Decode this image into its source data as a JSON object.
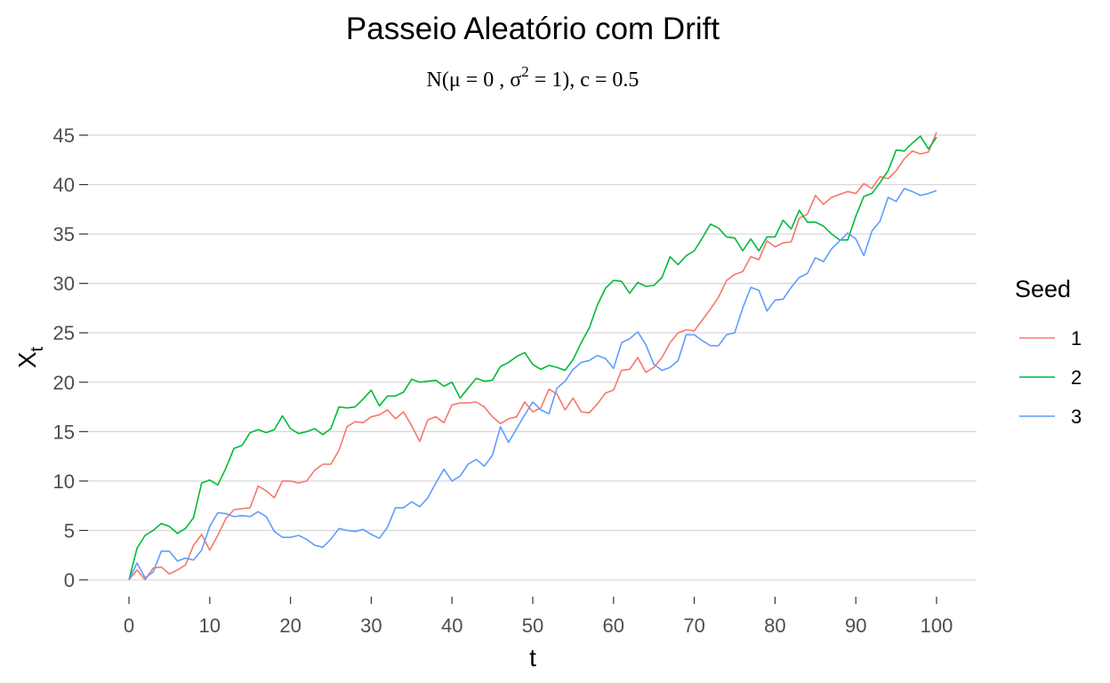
{
  "chart_data": {
    "type": "line",
    "title": "Passeio Aleatório com Drift",
    "subtitle": "N(μ = 0 , σ² = 1),  c = 0.5",
    "subtitle_parts": {
      "a": "N(μ = 0 , σ",
      "sup": "2",
      "b": " = 1),  c = 0.5"
    },
    "xlabel": "t",
    "ylabel": {
      "main": "X",
      "sub": "t"
    },
    "xlim": [
      0,
      100
    ],
    "ylim": [
      0,
      45
    ],
    "xticks": [
      0,
      10,
      20,
      30,
      40,
      50,
      60,
      70,
      80,
      90,
      100
    ],
    "yticks": [
      0,
      5,
      10,
      15,
      20,
      25,
      30,
      35,
      40,
      45
    ],
    "grid": "horizontal",
    "legend": {
      "title": "Seed",
      "placement": "right"
    },
    "x": [
      0,
      1,
      2,
      3,
      4,
      5,
      6,
      7,
      8,
      9,
      10,
      11,
      12,
      13,
      14,
      15,
      16,
      17,
      18,
      19,
      20,
      21,
      22,
      23,
      24,
      25,
      26,
      27,
      28,
      29,
      30,
      31,
      32,
      33,
      34,
      35,
      36,
      37,
      38,
      39,
      40,
      41,
      42,
      43,
      44,
      45,
      46,
      47,
      48,
      49,
      50,
      51,
      52,
      53,
      54,
      55,
      56,
      57,
      58,
      59,
      60,
      61,
      62,
      63,
      64,
      65,
      66,
      67,
      68,
      69,
      70,
      71,
      72,
      73,
      74,
      75,
      76,
      77,
      78,
      79,
      80,
      81,
      82,
      83,
      84,
      85,
      86,
      87,
      88,
      89,
      90,
      91,
      92,
      93,
      94,
      95,
      96,
      97,
      98,
      99,
      100
    ],
    "series": [
      {
        "name": "1",
        "color": "#F8766D",
        "values": [
          0,
          1.0,
          0.0,
          1.2,
          1.3,
          0.6,
          1.0,
          1.5,
          3.5,
          4.6,
          3.0,
          4.5,
          6.2,
          7.1,
          7.2,
          7.3,
          9.5,
          9.0,
          8.3,
          10.0,
          10.0,
          9.8,
          10.0,
          11.1,
          11.7,
          11.7,
          13.1,
          15.5,
          16.0,
          15.9,
          16.5,
          16.7,
          17.2,
          16.3,
          17.0,
          15.6,
          14.0,
          16.2,
          16.5,
          15.9,
          17.7,
          17.9,
          17.9,
          18.0,
          17.5,
          16.5,
          15.8,
          16.3,
          16.5,
          18.0,
          17.0,
          17.4,
          19.3,
          18.8,
          17.2,
          18.4,
          17.0,
          16.9,
          17.8,
          18.9,
          19.2,
          21.2,
          21.3,
          22.5,
          21.0,
          21.5,
          22.5,
          24.0,
          25.0,
          25.3,
          25.2,
          26.3,
          27.4,
          28.6,
          30.3,
          30.9,
          31.2,
          32.7,
          32.4,
          34.3,
          33.7,
          34.1,
          34.2,
          36.6,
          37.0,
          38.9,
          38.0,
          38.7,
          39.0,
          39.3,
          39.1,
          40.1,
          39.6,
          40.8,
          40.6,
          41.4,
          42.6,
          43.4,
          43.1,
          43.3,
          45.3
        ]
      },
      {
        "name": "2",
        "color": "#00BA38",
        "values": [
          0,
          3.2,
          4.5,
          5.0,
          5.7,
          5.4,
          4.7,
          5.2,
          6.3,
          9.8,
          10.1,
          9.6,
          11.3,
          13.3,
          13.6,
          14.9,
          15.2,
          14.9,
          15.2,
          16.6,
          15.3,
          14.8,
          15.0,
          15.3,
          14.7,
          15.3,
          17.5,
          17.4,
          17.5,
          18.3,
          19.2,
          17.6,
          18.6,
          18.6,
          19.0,
          20.3,
          20.0,
          20.1,
          20.2,
          19.6,
          20.0,
          18.4,
          19.4,
          20.4,
          20.1,
          20.2,
          21.6,
          22.0,
          22.6,
          23.0,
          21.8,
          21.3,
          21.7,
          21.5,
          21.2,
          22.3,
          24.0,
          25.5,
          27.8,
          29.5,
          30.3,
          30.2,
          29.0,
          30.1,
          29.7,
          29.8,
          30.6,
          32.7,
          31.9,
          32.8,
          33.3,
          34.6,
          36.0,
          35.6,
          34.7,
          34.6,
          33.3,
          34.5,
          33.3,
          34.7,
          34.7,
          36.4,
          35.5,
          37.4,
          36.2,
          36.2,
          35.8,
          35.0,
          34.4,
          34.4,
          36.8,
          38.8,
          39.1,
          40.2,
          41.4,
          43.5,
          43.4,
          44.2,
          44.9,
          43.6,
          44.8
        ]
      },
      {
        "name": "3",
        "color": "#619CFF",
        "values": [
          0,
          1.7,
          0.2,
          0.8,
          2.9,
          2.9,
          1.9,
          2.2,
          2.0,
          3.0,
          5.4,
          6.8,
          6.7,
          6.4,
          6.5,
          6.4,
          6.9,
          6.4,
          4.9,
          4.3,
          4.3,
          4.5,
          4.1,
          3.5,
          3.3,
          4.1,
          5.2,
          5.0,
          4.9,
          5.1,
          4.6,
          4.2,
          5.3,
          7.3,
          7.3,
          7.9,
          7.4,
          8.3,
          9.8,
          11.2,
          10.0,
          10.5,
          11.7,
          12.2,
          11.5,
          12.6,
          15.5,
          13.9,
          15.3,
          16.7,
          18.0,
          17.2,
          16.8,
          19.4,
          20.1,
          21.3,
          22.0,
          22.2,
          22.7,
          22.4,
          21.4,
          24.0,
          24.4,
          25.1,
          23.8,
          21.8,
          21.2,
          21.5,
          22.2,
          24.8,
          24.8,
          24.2,
          23.7,
          23.7,
          24.8,
          25.0,
          27.5,
          29.6,
          29.3,
          27.2,
          28.3,
          28.4,
          29.6,
          30.6,
          31.0,
          32.6,
          32.2,
          33.5,
          34.3,
          35.1,
          34.5,
          32.8,
          35.3,
          36.3,
          38.7,
          38.3,
          39.6,
          39.3,
          38.9,
          39.1,
          39.4
        ]
      }
    ]
  }
}
